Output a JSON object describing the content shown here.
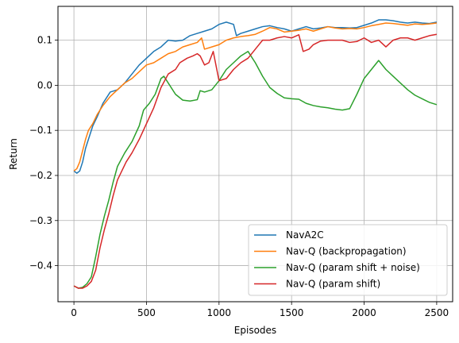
{
  "chart_data": {
    "type": "line",
    "xlabel": "Episodes",
    "ylabel": "Return",
    "xlim": [
      -110,
      2610
    ],
    "ylim": [
      -0.48,
      0.175
    ],
    "xticks": [
      0,
      500,
      1000,
      1500,
      2000,
      2500
    ],
    "yticks": [
      -0.4,
      -0.3,
      -0.2,
      -0.1,
      0.0,
      0.1
    ],
    "xtick_labels": [
      "0",
      "500",
      "1000",
      "1500",
      "2000",
      "2500"
    ],
    "ytick_labels": [
      "−0.4",
      "−0.3",
      "−0.2",
      "−0.1",
      "0.0",
      "0.1"
    ],
    "grid": true,
    "legend_position": "lower-right",
    "series": [
      {
        "name": "NavA2C",
        "color": "#1f77b4",
        "points": [
          [
            0,
            -0.19
          ],
          [
            20,
            -0.195
          ],
          [
            40,
            -0.19
          ],
          [
            60,
            -0.17
          ],
          [
            80,
            -0.14
          ],
          [
            100,
            -0.12
          ],
          [
            130,
            -0.09
          ],
          [
            160,
            -0.07
          ],
          [
            200,
            -0.04
          ],
          [
            250,
            -0.015
          ],
          [
            300,
            -0.01
          ],
          [
            350,
            0.005
          ],
          [
            400,
            0.025
          ],
          [
            450,
            0.045
          ],
          [
            500,
            0.06
          ],
          [
            550,
            0.075
          ],
          [
            600,
            0.085
          ],
          [
            650,
            0.1
          ],
          [
            700,
            0.098
          ],
          [
            750,
            0.1
          ],
          [
            800,
            0.11
          ],
          [
            850,
            0.115
          ],
          [
            900,
            0.12
          ],
          [
            950,
            0.125
          ],
          [
            1000,
            0.135
          ],
          [
            1050,
            0.14
          ],
          [
            1100,
            0.135
          ],
          [
            1120,
            0.11
          ],
          [
            1150,
            0.115
          ],
          [
            1200,
            0.12
          ],
          [
            1250,
            0.125
          ],
          [
            1300,
            0.13
          ],
          [
            1350,
            0.132
          ],
          [
            1400,
            0.128
          ],
          [
            1450,
            0.125
          ],
          [
            1500,
            0.12
          ],
          [
            1550,
            0.125
          ],
          [
            1600,
            0.13
          ],
          [
            1650,
            0.125
          ],
          [
            1700,
            0.127
          ],
          [
            1750,
            0.13
          ],
          [
            1800,
            0.128
          ],
          [
            1850,
            0.128
          ],
          [
            1900,
            0.127
          ],
          [
            1950,
            0.128
          ],
          [
            2000,
            0.133
          ],
          [
            2050,
            0.138
          ],
          [
            2100,
            0.145
          ],
          [
            2150,
            0.145
          ],
          [
            2200,
            0.143
          ],
          [
            2250,
            0.14
          ],
          [
            2300,
            0.138
          ],
          [
            2350,
            0.14
          ],
          [
            2400,
            0.138
          ],
          [
            2450,
            0.137
          ],
          [
            2500,
            0.14
          ]
        ]
      },
      {
        "name": "Nav-Q (backpropagation)",
        "color": "#ff7f0e",
        "points": [
          [
            0,
            -0.19
          ],
          [
            20,
            -0.185
          ],
          [
            40,
            -0.17
          ],
          [
            60,
            -0.145
          ],
          [
            80,
            -0.12
          ],
          [
            100,
            -0.1
          ],
          [
            130,
            -0.085
          ],
          [
            160,
            -0.065
          ],
          [
            200,
            -0.045
          ],
          [
            250,
            -0.025
          ],
          [
            300,
            -0.01
          ],
          [
            350,
            0.005
          ],
          [
            400,
            0.015
          ],
          [
            450,
            0.03
          ],
          [
            500,
            0.045
          ],
          [
            550,
            0.05
          ],
          [
            600,
            0.06
          ],
          [
            650,
            0.07
          ],
          [
            700,
            0.075
          ],
          [
            750,
            0.085
          ],
          [
            800,
            0.09
          ],
          [
            850,
            0.095
          ],
          [
            880,
            0.105
          ],
          [
            900,
            0.08
          ],
          [
            950,
            0.085
          ],
          [
            1000,
            0.09
          ],
          [
            1050,
            0.1
          ],
          [
            1100,
            0.105
          ],
          [
            1150,
            0.108
          ],
          [
            1200,
            0.11
          ],
          [
            1250,
            0.113
          ],
          [
            1300,
            0.12
          ],
          [
            1350,
            0.128
          ],
          [
            1400,
            0.125
          ],
          [
            1450,
            0.118
          ],
          [
            1500,
            0.12
          ],
          [
            1550,
            0.122
          ],
          [
            1600,
            0.125
          ],
          [
            1650,
            0.12
          ],
          [
            1700,
            0.125
          ],
          [
            1750,
            0.13
          ],
          [
            1800,
            0.127
          ],
          [
            1850,
            0.125
          ],
          [
            1900,
            0.126
          ],
          [
            1950,
            0.125
          ],
          [
            2000,
            0.128
          ],
          [
            2050,
            0.132
          ],
          [
            2100,
            0.135
          ],
          [
            2150,
            0.138
          ],
          [
            2200,
            0.137
          ],
          [
            2250,
            0.135
          ],
          [
            2300,
            0.133
          ],
          [
            2350,
            0.136
          ],
          [
            2400,
            0.135
          ],
          [
            2450,
            0.136
          ],
          [
            2500,
            0.138
          ]
        ]
      },
      {
        "name": "Nav-Q (param shift + noise)",
        "color": "#2ca02c",
        "points": [
          [
            0,
            -0.445
          ],
          [
            30,
            -0.45
          ],
          [
            60,
            -0.448
          ],
          [
            90,
            -0.44
          ],
          [
            120,
            -0.425
          ],
          [
            150,
            -0.38
          ],
          [
            180,
            -0.33
          ],
          [
            210,
            -0.29
          ],
          [
            240,
            -0.255
          ],
          [
            270,
            -0.215
          ],
          [
            300,
            -0.18
          ],
          [
            350,
            -0.15
          ],
          [
            400,
            -0.125
          ],
          [
            450,
            -0.09
          ],
          [
            480,
            -0.055
          ],
          [
            520,
            -0.04
          ],
          [
            560,
            -0.02
          ],
          [
            600,
            0.015
          ],
          [
            620,
            0.02
          ],
          [
            650,
            0.005
          ],
          [
            700,
            -0.02
          ],
          [
            750,
            -0.033
          ],
          [
            800,
            -0.035
          ],
          [
            850,
            -0.032
          ],
          [
            870,
            -0.012
          ],
          [
            900,
            -0.015
          ],
          [
            950,
            -0.01
          ],
          [
            1000,
            0.01
          ],
          [
            1050,
            0.035
          ],
          [
            1100,
            0.05
          ],
          [
            1150,
            0.065
          ],
          [
            1200,
            0.075
          ],
          [
            1250,
            0.05
          ],
          [
            1300,
            0.02
          ],
          [
            1350,
            -0.005
          ],
          [
            1400,
            -0.018
          ],
          [
            1450,
            -0.028
          ],
          [
            1500,
            -0.03
          ],
          [
            1550,
            -0.031
          ],
          [
            1600,
            -0.04
          ],
          [
            1650,
            -0.045
          ],
          [
            1700,
            -0.048
          ],
          [
            1750,
            -0.05
          ],
          [
            1800,
            -0.053
          ],
          [
            1850,
            -0.055
          ],
          [
            1900,
            -0.052
          ],
          [
            1950,
            -0.02
          ],
          [
            2000,
            0.015
          ],
          [
            2050,
            0.035
          ],
          [
            2100,
            0.055
          ],
          [
            2150,
            0.035
          ],
          [
            2200,
            0.02
          ],
          [
            2250,
            0.005
          ],
          [
            2300,
            -0.01
          ],
          [
            2350,
            -0.022
          ],
          [
            2400,
            -0.03
          ],
          [
            2450,
            -0.038
          ],
          [
            2500,
            -0.043
          ]
        ]
      },
      {
        "name": "Nav-Q (param shift)",
        "color": "#d62728",
        "points": [
          [
            0,
            -0.445
          ],
          [
            30,
            -0.45
          ],
          [
            60,
            -0.45
          ],
          [
            90,
            -0.445
          ],
          [
            120,
            -0.435
          ],
          [
            150,
            -0.41
          ],
          [
            180,
            -0.36
          ],
          [
            210,
            -0.32
          ],
          [
            240,
            -0.285
          ],
          [
            270,
            -0.245
          ],
          [
            300,
            -0.21
          ],
          [
            330,
            -0.19
          ],
          [
            360,
            -0.17
          ],
          [
            400,
            -0.15
          ],
          [
            450,
            -0.12
          ],
          [
            500,
            -0.085
          ],
          [
            550,
            -0.05
          ],
          [
            600,
            -0.005
          ],
          [
            650,
            0.025
          ],
          [
            700,
            0.035
          ],
          [
            730,
            0.05
          ],
          [
            780,
            0.06
          ],
          [
            820,
            0.065
          ],
          [
            850,
            0.07
          ],
          [
            870,
            0.065
          ],
          [
            900,
            0.045
          ],
          [
            930,
            0.05
          ],
          [
            960,
            0.075
          ],
          [
            1000,
            0.01
          ],
          [
            1050,
            0.015
          ],
          [
            1100,
            0.035
          ],
          [
            1150,
            0.05
          ],
          [
            1200,
            0.06
          ],
          [
            1250,
            0.08
          ],
          [
            1300,
            0.1
          ],
          [
            1350,
            0.1
          ],
          [
            1400,
            0.105
          ],
          [
            1450,
            0.108
          ],
          [
            1500,
            0.105
          ],
          [
            1550,
            0.112
          ],
          [
            1580,
            0.075
          ],
          [
            1620,
            0.08
          ],
          [
            1650,
            0.09
          ],
          [
            1700,
            0.098
          ],
          [
            1750,
            0.1
          ],
          [
            1800,
            0.1
          ],
          [
            1850,
            0.1
          ],
          [
            1900,
            0.095
          ],
          [
            1950,
            0.097
          ],
          [
            2000,
            0.105
          ],
          [
            2050,
            0.095
          ],
          [
            2100,
            0.1
          ],
          [
            2150,
            0.085
          ],
          [
            2200,
            0.1
          ],
          [
            2250,
            0.105
          ],
          [
            2300,
            0.105
          ],
          [
            2350,
            0.1
          ],
          [
            2400,
            0.105
          ],
          [
            2450,
            0.11
          ],
          [
            2500,
            0.113
          ]
        ]
      }
    ]
  }
}
